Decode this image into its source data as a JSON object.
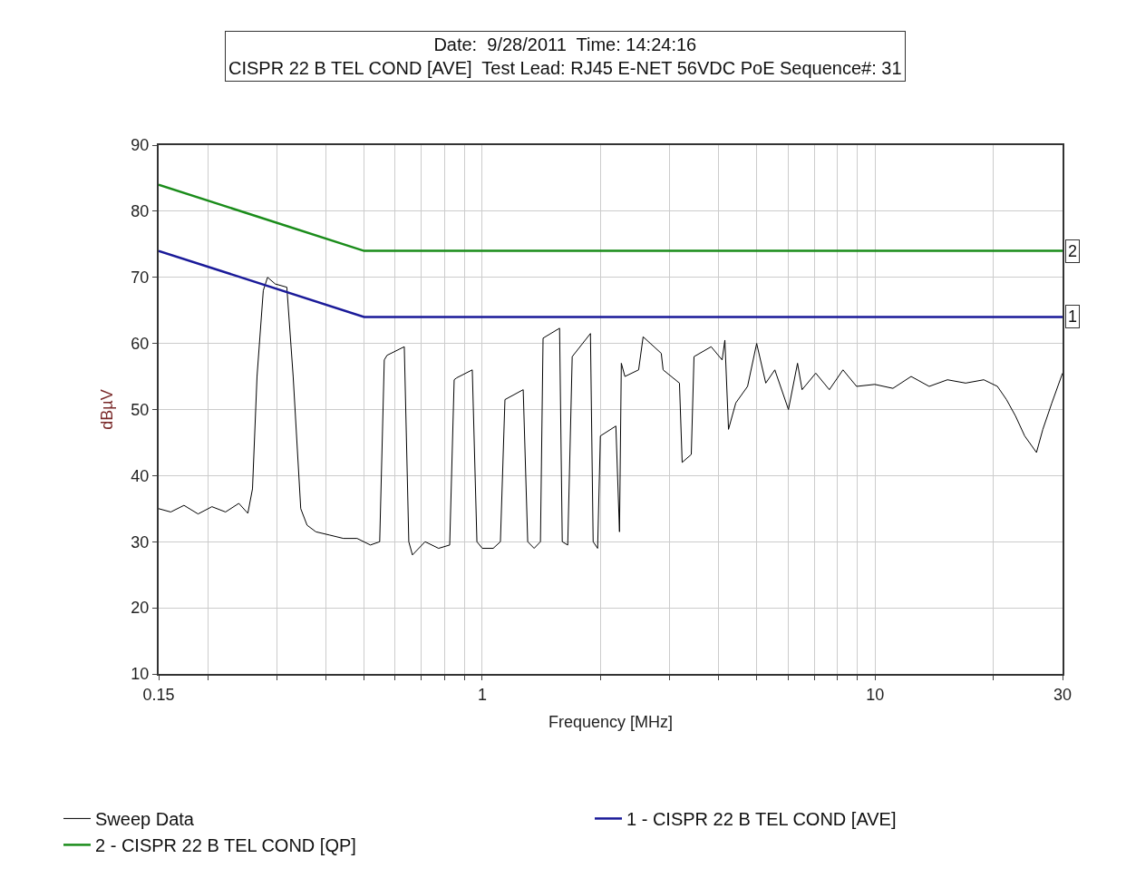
{
  "chart_data": {
    "type": "line",
    "title": "Date:  9/28/2011  Time: 14:24:16",
    "subtitle": "CISPR 22 B TEL COND [AVE]  Test Lead: RJ45 E-NET 56VDC PoE Sequence#: 31",
    "xlabel": "Frequency [MHz]",
    "ylabel": "dBµV",
    "log": "x",
    "grid": true,
    "legend": "bottom",
    "marker": "none",
    "line_style": "solid",
    "xlim": [
      0.15,
      30
    ],
    "xticks": [
      0.15,
      {
        "value": 0.2,
        "label": null
      },
      {
        "value": 0.3,
        "label": null
      },
      {
        "value": 0.4,
        "label": null
      },
      {
        "value": 0.5,
        "label": null
      },
      {
        "value": 0.6,
        "label": null
      },
      {
        "value": 0.7,
        "label": null
      },
      {
        "value": 0.8,
        "label": null
      },
      {
        "value": 0.9,
        "label": null
      },
      1,
      {
        "value": 2,
        "label": null
      },
      {
        "value": 3,
        "label": null
      },
      {
        "value": 4,
        "label": null
      },
      {
        "value": 5,
        "label": null
      },
      {
        "value": 6,
        "label": null
      },
      {
        "value": 7,
        "label": null
      },
      {
        "value": 8,
        "label": null
      },
      {
        "value": 9,
        "label": null
      },
      10,
      {
        "value": 20,
        "label": null
      },
      30
    ],
    "ylim": [
      10,
      90
    ],
    "yticks": [
      10,
      20,
      30,
      40,
      50,
      60,
      70,
      80,
      90
    ],
    "series": [
      {
        "name": "Sweep Data",
        "color": "#000000",
        "x": [
          0.15,
          0.161,
          0.174,
          0.189,
          0.205,
          0.222,
          0.24,
          0.253,
          0.26,
          0.267,
          0.277,
          0.284,
          0.297,
          0.318,
          0.33,
          0.345,
          0.358,
          0.377,
          0.409,
          0.443,
          0.48,
          0.519,
          0.548,
          0.563,
          0.572,
          0.633,
          0.65,
          0.664,
          0.715,
          0.774,
          0.826,
          0.848,
          0.861,
          0.943,
          0.969,
          1.0,
          1.066,
          1.112,
          1.142,
          1.271,
          1.305,
          1.355,
          1.406,
          1.428,
          1.573,
          1.598,
          1.65,
          1.694,
          1.885,
          1.915,
          1.966,
          1.998,
          2.188,
          2.235,
          2.259,
          2.307,
          2.5,
          2.567,
          2.855,
          2.886,
          3.176,
          3.227,
          3.404,
          3.459,
          3.825,
          4.079,
          4.145,
          4.234,
          4.419,
          4.735,
          4.994,
          5.268,
          5.555,
          6.017,
          6.346,
          6.518,
          7.062,
          7.647,
          8.283,
          8.971,
          9.98,
          11.1,
          12.35,
          13.73,
          15.28,
          17.0,
          18.91,
          20.48,
          21.6,
          22.78,
          24.03,
          25.75,
          26.73,
          28.18,
          30.0
        ],
        "values": [
          35,
          34.5,
          35.5,
          34.2,
          35.3,
          34.5,
          35.8,
          34.3,
          38,
          55,
          68,
          70,
          69,
          68.5,
          55,
          35,
          32.5,
          31.5,
          31,
          30.5,
          30.5,
          29.5,
          30,
          57.5,
          58.2,
          59.5,
          30,
          28,
          30,
          29,
          29.5,
          54.5,
          54.8,
          56,
          30,
          29,
          29,
          30,
          51.5,
          53,
          30,
          29,
          30,
          60.8,
          62.3,
          30,
          29.5,
          58,
          61.5,
          30,
          29,
          46,
          47.5,
          31.5,
          57,
          55,
          56,
          61,
          58.5,
          56,
          54,
          42,
          43.2,
          58,
          59.5,
          57.5,
          60.5,
          47,
          51,
          53.5,
          60,
          54,
          56,
          50,
          57,
          53,
          55.5,
          53,
          56,
          53.5,
          53.8,
          53.2,
          55,
          53.5,
          54.5,
          54,
          54.5,
          53.5,
          51.5,
          49,
          46,
          43.5,
          47,
          51,
          55.5
        ]
      },
      {
        "name": "1 - CISPR 22 B TEL COND [AVE]",
        "color": "#1a1a99",
        "x": [
          0.15,
          0.5,
          30
        ],
        "values": [
          74,
          64,
          64
        ]
      },
      {
        "name": "2 - CISPR 22 B TEL COND [QP]",
        "color": "#1a8c1a",
        "x": [
          0.15,
          0.5,
          30
        ],
        "values": [
          84,
          74,
          74
        ]
      }
    ],
    "annotations": [
      {
        "text": "1",
        "x": 30,
        "y": 64
      },
      {
        "text": "2",
        "x": 30,
        "y": 74
      }
    ]
  }
}
